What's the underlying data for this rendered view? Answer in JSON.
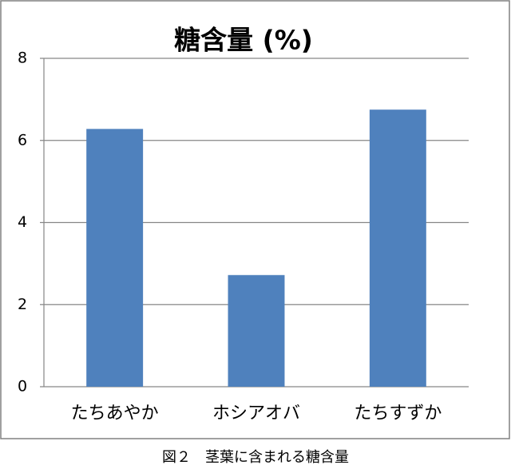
{
  "chart_data": {
    "type": "bar",
    "title": "糖含量 (%)",
    "categories": [
      "たちあやか",
      "ホシアオバ",
      "たちすずか"
    ],
    "values": [
      6.28,
      2.72,
      6.75
    ],
    "color": "#4f81bd",
    "ylim": [
      0,
      8
    ],
    "yticks": [
      0,
      2,
      4,
      6,
      8
    ],
    "grid": true,
    "caption": "図２　茎葉に含まれる糖含量"
  }
}
